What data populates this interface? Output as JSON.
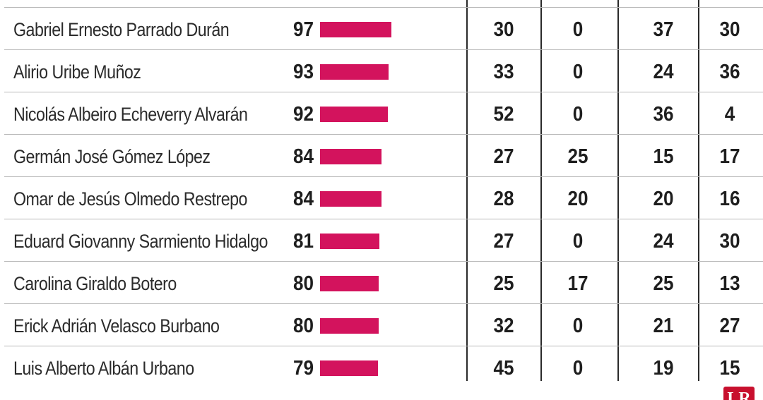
{
  "chart_data": {
    "type": "table",
    "title": "",
    "score_max": 100,
    "columns": [
      "",
      "",
      "",
      "",
      "",
      ""
    ],
    "rows": [
      {
        "name": "Gabriel Ernesto Parrado Durán",
        "score": 97,
        "c1": 30,
        "c2": 0,
        "c3": 37,
        "c4": 30
      },
      {
        "name": "Alirio Uribe Muñoz",
        "score": 93,
        "c1": 33,
        "c2": 0,
        "c3": 24,
        "c4": 36
      },
      {
        "name": "Nicolás Albeiro Echeverry Alvarán",
        "score": 92,
        "c1": 52,
        "c2": 0,
        "c3": 36,
        "c4": 4
      },
      {
        "name": "Germán José Gómez López",
        "score": 84,
        "c1": 27,
        "c2": 25,
        "c3": 15,
        "c4": 17
      },
      {
        "name": "Omar de Jesús Olmedo Restrepo",
        "score": 84,
        "c1": 28,
        "c2": 20,
        "c3": 20,
        "c4": 16
      },
      {
        "name": "Eduard Giovanny Sarmiento Hidalgo",
        "score": 81,
        "c1": 27,
        "c2": 0,
        "c3": 24,
        "c4": 30
      },
      {
        "name": "Carolina Giraldo Botero",
        "score": 80,
        "c1": 25,
        "c2": 17,
        "c3": 25,
        "c4": 13
      },
      {
        "name": "Erick Adrián Velasco Burbano",
        "score": 80,
        "c1": 32,
        "c2": 0,
        "c3": 21,
        "c4": 27
      },
      {
        "name": "Luis Alberto Albán Urbano",
        "score": 79,
        "c1": 45,
        "c2": 0,
        "c3": 19,
        "c4": 15
      }
    ]
  },
  "colors": {
    "bar": "#d3135d",
    "logo": "#c8102e",
    "rule": "#b9b9b9",
    "text": "#1e1e1e"
  },
  "logo": {
    "text": "LR"
  }
}
